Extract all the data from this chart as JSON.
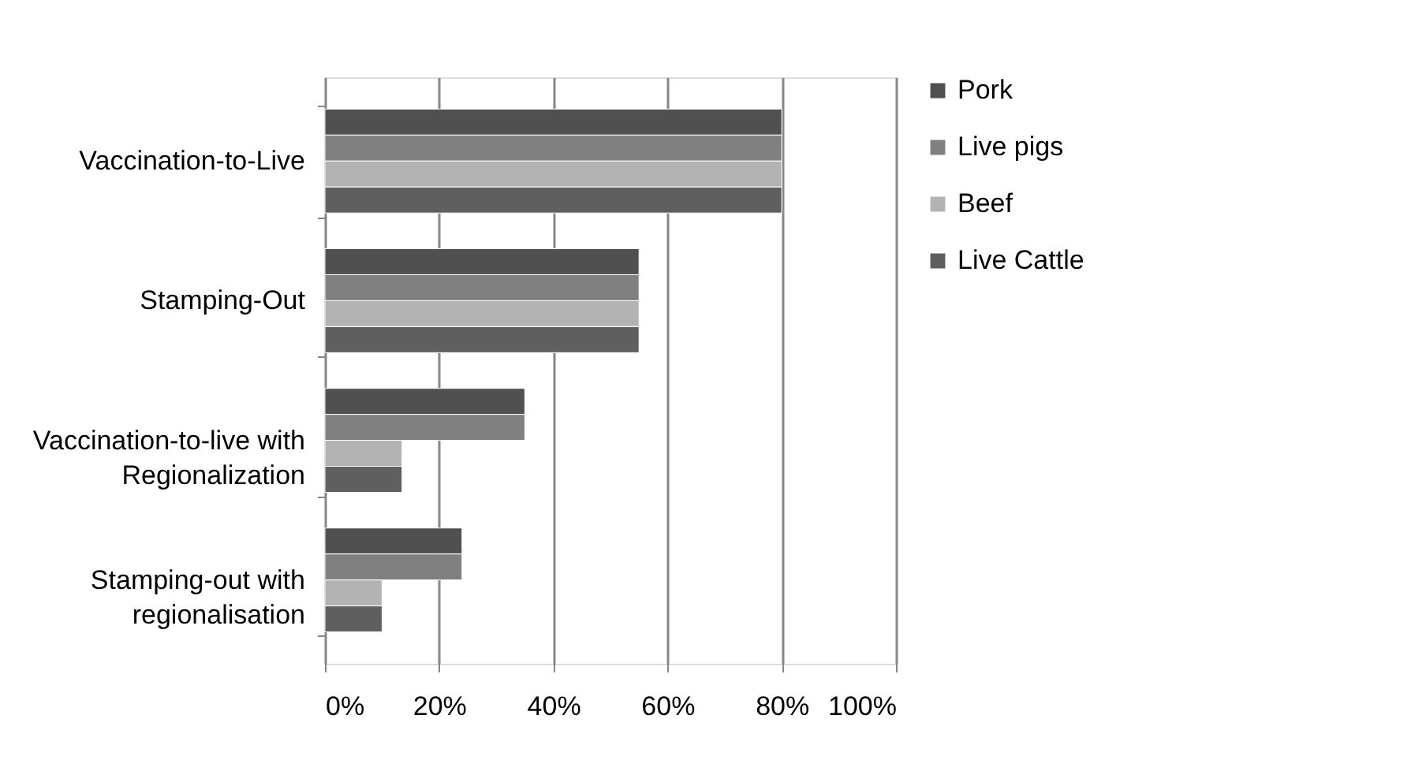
{
  "chart_data": {
    "type": "bar",
    "orientation": "horizontal",
    "categories": [
      "Vaccination-to-Live",
      "Stamping-Out",
      "Vaccination-to-live with Regionalization",
      "Stamping-out with regionalisation"
    ],
    "series": [
      {
        "name": "Pork",
        "color": "#505050",
        "values": [
          80,
          55,
          35,
          24
        ]
      },
      {
        "name": "Live pigs",
        "color": "#808080",
        "values": [
          80,
          55,
          35,
          24
        ]
      },
      {
        "name": "Beef",
        "color": "#b3b3b3",
        "values": [
          80,
          55,
          13.5,
          10
        ]
      },
      {
        "name": "Live Cattle",
        "color": "#5f5f5f",
        "values": [
          80,
          55,
          13.5,
          10
        ]
      }
    ],
    "xlim": [
      0,
      100
    ],
    "xticks": [
      {
        "value": 0,
        "label": "0%"
      },
      {
        "value": 20,
        "label": "20%"
      },
      {
        "value": 40,
        "label": "40%"
      },
      {
        "value": 60,
        "label": "60%"
      },
      {
        "value": 80,
        "label": "80%"
      },
      {
        "value": 100,
        "label": "100%"
      }
    ],
    "grid": "x",
    "legend": "right"
  }
}
